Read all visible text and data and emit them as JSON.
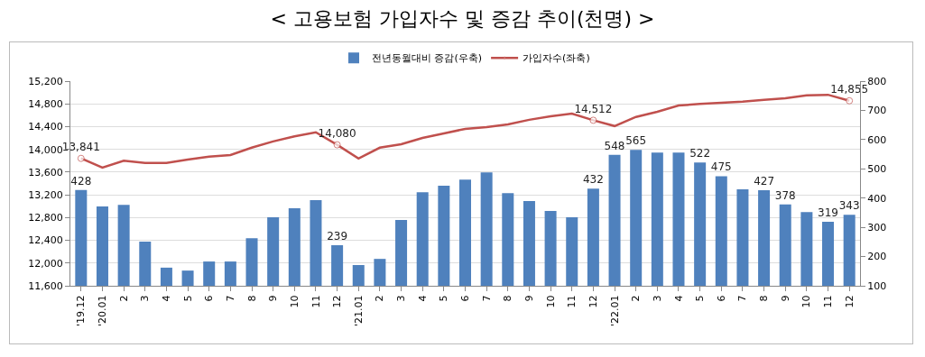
{
  "chart_data": {
    "type": "bar",
    "title": "< 고용보험 가입자수 및 증감 추이(천명) >",
    "categories": [
      "'19.12",
      "'20.01",
      "2",
      "3",
      "4",
      "5",
      "6",
      "7",
      "8",
      "9",
      "10",
      "11",
      "12",
      "'21.01",
      "2",
      "3",
      "4",
      "5",
      "6",
      "7",
      "8",
      "9",
      "10",
      "11",
      "12",
      "'22.01",
      "2",
      "3",
      "4",
      "5",
      "6",
      "7",
      "8",
      "9",
      "10",
      "11",
      "12"
    ],
    "series": [
      {
        "name": "전년동월대비 증감(우축)",
        "axis": "y2",
        "color": "#4f81bd",
        "values": [
          428,
          371,
          377,
          251,
          162,
          152,
          183,
          183,
          263,
          334,
          365,
          393,
          239,
          171,
          192,
          325,
          420,
          442,
          463,
          488,
          417,
          390,
          356,
          334,
          432,
          548,
          565,
          556,
          556,
          522,
          475,
          430,
          427,
          378,
          352,
          319,
          343
        ],
        "value_labels": [
          "428",
          null,
          null,
          null,
          null,
          null,
          null,
          null,
          null,
          null,
          null,
          null,
          "239",
          null,
          null,
          null,
          null,
          null,
          null,
          null,
          null,
          null,
          null,
          null,
          "432",
          "548",
          "565",
          null,
          null,
          "522",
          "475",
          null,
          "427",
          "378",
          null,
          "319",
          "343"
        ]
      },
      {
        "name": "가입자수(좌축)",
        "type": "line",
        "color": "#c0504d",
        "values": [
          13841,
          13680,
          13800,
          13760,
          13760,
          13820,
          13870,
          13900,
          14030,
          14140,
          14230,
          14300,
          14080,
          13840,
          14030,
          14090,
          14200,
          14280,
          14360,
          14390,
          14440,
          14520,
          14580,
          14630,
          14512,
          14410,
          14570,
          14660,
          14770,
          14800,
          14820,
          14840,
          14870,
          14900,
          14950,
          14960,
          14855
        ],
        "value_labels": [
          "13,841",
          null,
          null,
          null,
          null,
          null,
          null,
          null,
          null,
          null,
          null,
          null,
          "14,080",
          null,
          null,
          null,
          null,
          null,
          null,
          null,
          null,
          null,
          null,
          null,
          "14,512",
          null,
          null,
          null,
          null,
          null,
          null,
          null,
          null,
          null,
          null,
          null,
          "14,855"
        ]
      }
    ],
    "ylim": [
      11600,
      15200
    ],
    "yticks": [
      {
        "value": 11600,
        "label": "11,600"
      },
      {
        "value": 12000,
        "label": "12,000"
      },
      {
        "value": 12400,
        "label": "12,400"
      },
      {
        "value": 12800,
        "label": "12,800"
      },
      {
        "value": 13200,
        "label": "13,200"
      },
      {
        "value": 13600,
        "label": "13,600"
      },
      {
        "value": 14000,
        "label": "14,000"
      },
      {
        "value": 14400,
        "label": "14,400"
      },
      {
        "value": 14800,
        "label": "14,800"
      },
      {
        "value": 15200,
        "label": "15,200"
      }
    ],
    "y2lim": [
      100,
      800
    ],
    "y2ticks": [
      100,
      200,
      300,
      400,
      500,
      600,
      700,
      800
    ],
    "grid": "y",
    "legend": "top"
  }
}
